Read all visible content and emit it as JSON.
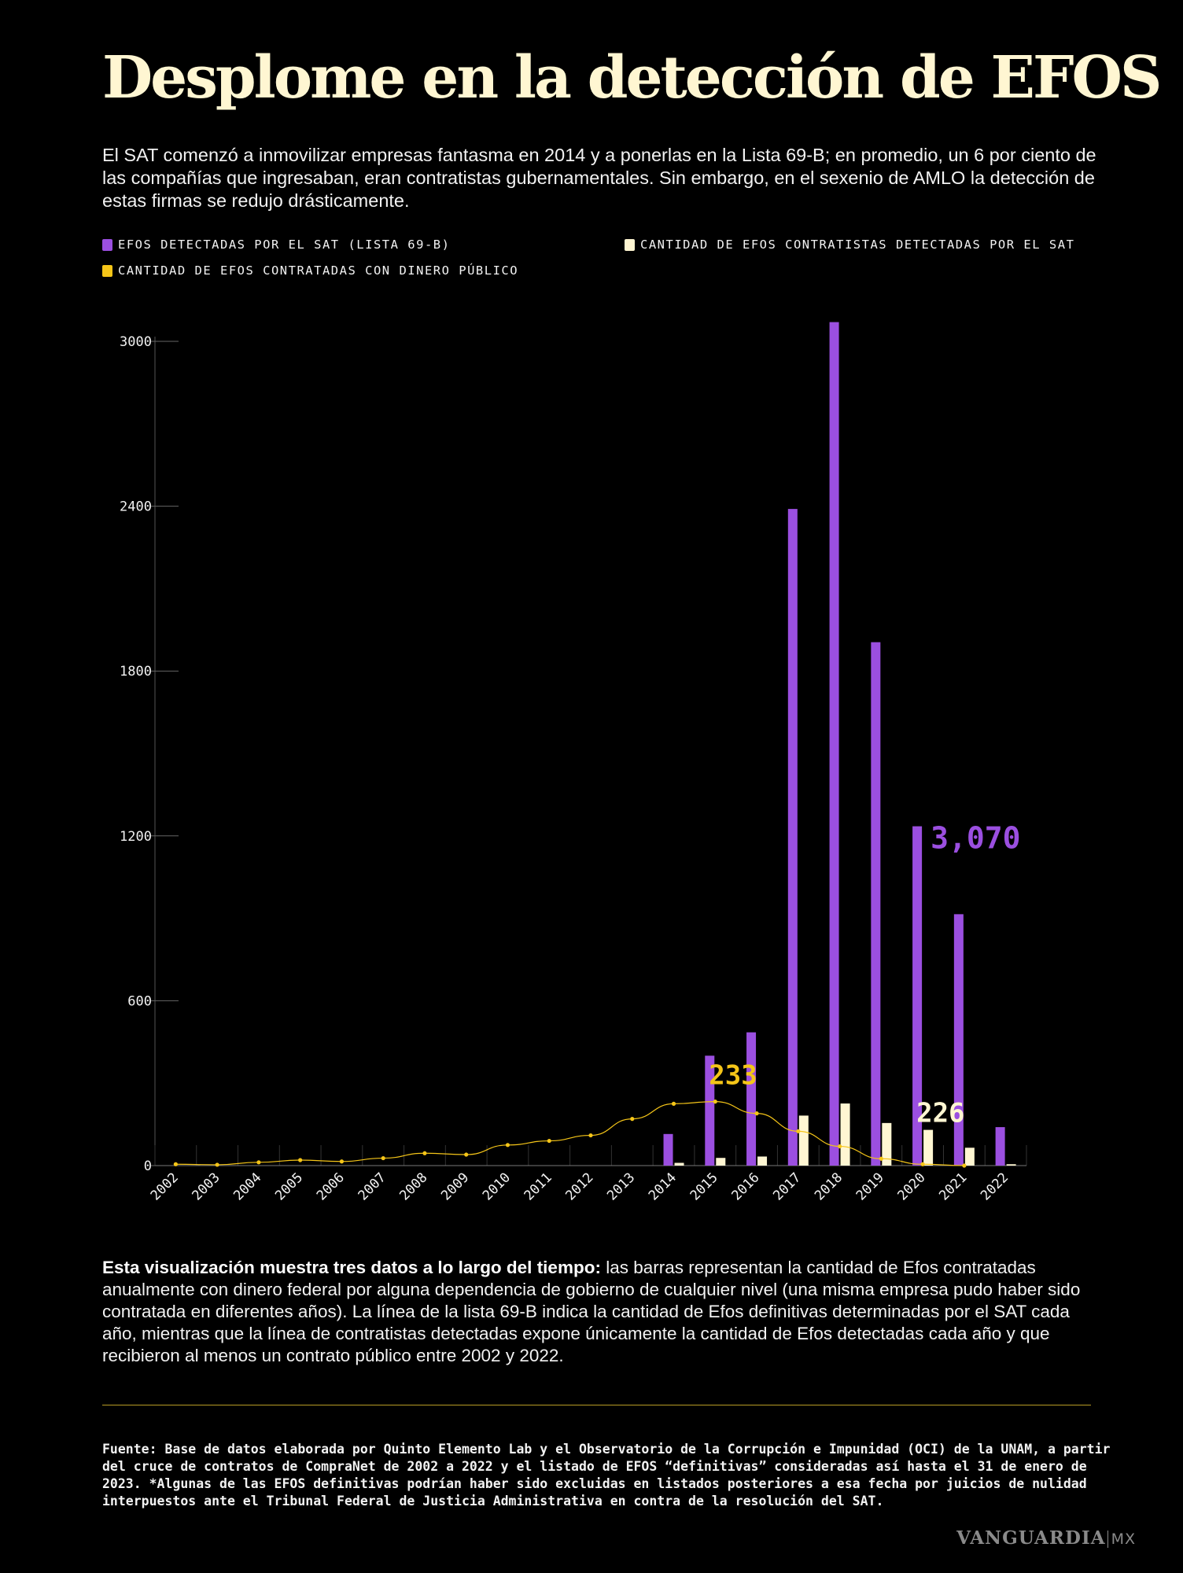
{
  "title": "Desplome en la detección de EFOS",
  "subtitle": "El SAT comenzó a inmovilizar empresas fantasma en 2014 y a ponerlas en la Lista 69-B; en promedio, un 6 por ciento de las compañías que ingresaban, eran contratistas gubernamentales. Sin embargo, en el sexenio de AMLO la detección de estas firmas se redujo drásticamente.",
  "legend": [
    {
      "label": "EFOS DETECTADAS POR EL SAT (LISTA 69-B)",
      "color": "#9b4fe0"
    },
    {
      "label": "CANTIDAD DE EFOS CONTRATISTAS DETECTADAS POR EL SAT",
      "color": "#fff6d2"
    },
    {
      "label": "CANTIDAD DE EFOS CONTRATADAS CON DINERO PÚBLICO",
      "color": "#f5c518"
    }
  ],
  "chart_data": {
    "type": "bar",
    "categories": [
      "2002",
      "2003",
      "2004",
      "2005",
      "2006",
      "2007",
      "2008",
      "2009",
      "2010",
      "2011",
      "2012",
      "2013",
      "2014",
      "2015",
      "2016",
      "2017",
      "2018",
      "2019",
      "2020",
      "2021",
      "2022"
    ],
    "yticks": [
      0,
      600,
      1200,
      1800,
      2400,
      3000
    ],
    "ylim": [
      0,
      3000
    ],
    "series": [
      {
        "name": "EFOS DETECTADAS POR EL SAT (LISTA 69-B)",
        "kind": "bar",
        "color": "#9b4fe0",
        "values": [
          0,
          0,
          0,
          0,
          0,
          0,
          0,
          0,
          0,
          0,
          0,
          0,
          115,
          400,
          485,
          2390,
          3070,
          1905,
          1235,
          915,
          140
        ]
      },
      {
        "name": "CANTIDAD DE EFOS CONTRATISTAS DETECTADAS POR EL SAT",
        "kind": "bar",
        "color": "#fff6d2",
        "values": [
          0,
          0,
          0,
          0,
          0,
          0,
          0,
          0,
          0,
          0,
          0,
          0,
          10,
          28,
          33,
          182,
          226,
          155,
          130,
          65,
          5
        ]
      },
      {
        "name": "CANTIDAD DE EFOS CONTRATADAS CON DINERO PÚBLICO",
        "kind": "line",
        "color": "#f5c518",
        "values": [
          5,
          3,
          12,
          20,
          15,
          27,
          45,
          40,
          75,
          90,
          110,
          170,
          225,
          233,
          190,
          125,
          70,
          25,
          5,
          0,
          null
        ]
      }
    ],
    "annotations": [
      {
        "text": "3,070",
        "series": 0,
        "index": 18,
        "color": "#9b4fe0"
      },
      {
        "text": "233",
        "series": 2,
        "index": 13,
        "color": "#f5c518"
      },
      {
        "text": "226",
        "series": 1,
        "index": 18,
        "color": "#fff6d2"
      }
    ]
  },
  "note": {
    "bold": "Esta visualización muestra tres datos a lo largo del tiempo:",
    "text": " las barras representan la cantidad de Efos contratadas anualmente con dinero federal por alguna dependencia de gobierno de cualquier nivel (una misma empresa pudo haber sido contratada en diferentes años). La línea de la lista 69-B indica la cantidad de Efos definitivas determinadas por el SAT cada año, mientras que la línea de contratistas detectadas expone únicamente la cantidad de Efos detectadas cada año y que recibieron al menos un contrato público entre 2002 y 2022."
  },
  "source": "Fuente: Base de datos elaborada por Quinto Elemento Lab y el Observatorio de la Corrupción e Impunidad (OCI) de la UNAM, a partir del cruce de contratos de CompraNet de 2002 a 2022 y el listado de EFOS “definitivas” consideradas así hasta el 31 de enero de 2023. *Algunas de las EFOS definitivas podrían haber sido excluidas en listados posteriores a esa fecha por juicios de nulidad interpuestos ante el Tribunal Federal de Justicia Administrativa en contra de la resolución del SAT.",
  "brand": {
    "name": "VANGUARDIA",
    "suffix": "MX"
  }
}
